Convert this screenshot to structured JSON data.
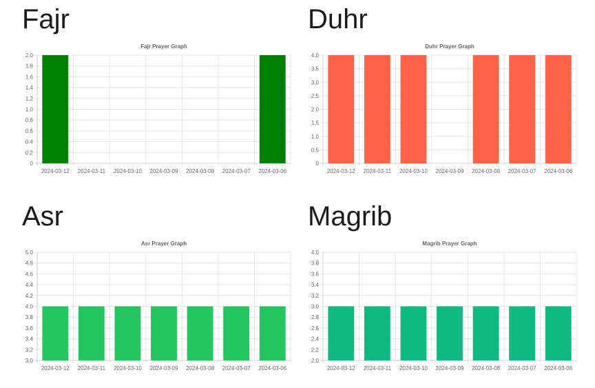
{
  "sections": [
    {
      "heading": "Fajr"
    },
    {
      "heading": "Duhr"
    },
    {
      "heading": "Asr"
    },
    {
      "heading": "Magrib"
    }
  ],
  "chart_data": [
    {
      "type": "bar",
      "title": "Fajr Prayer Graph",
      "categories": [
        "2024-03-12",
        "2024-03-11",
        "2024-03-10",
        "2024-03-09",
        "2024-03-08",
        "2024-03-07",
        "2024-03-06"
      ],
      "values": [
        2,
        0,
        0,
        0,
        0,
        0,
        2
      ],
      "yticks": [
        "0",
        "0.2",
        "0.4",
        "0.6",
        "0.8",
        "1.0",
        "1.2",
        "1.4",
        "1.6",
        "1.8",
        "2.0"
      ],
      "ylim": [
        0,
        2
      ],
      "xlabel": "",
      "ylabel": "",
      "color": "#008000",
      "grid": true
    },
    {
      "type": "bar",
      "title": "Duhr Prayer Graph",
      "categories": [
        "2024-03-12",
        "2024-03-11",
        "2024-03-10",
        "2024-03-09",
        "2024-03-08",
        "2024-03-07",
        "2024-03-06"
      ],
      "values": [
        4,
        4,
        4,
        0,
        4,
        4,
        4
      ],
      "yticks": [
        "0",
        "0.5",
        "1.0",
        "1.5",
        "2.0",
        "2.5",
        "3.0",
        "3.5",
        "4.0"
      ],
      "ylim": [
        0,
        4
      ],
      "xlabel": "",
      "ylabel": "",
      "color": "#ff6347",
      "grid": true
    },
    {
      "type": "bar",
      "title": "Asr Prayer Graph",
      "categories": [
        "2024-03-12",
        "2024-03-11",
        "2024-03-10",
        "2024-03-09",
        "2024-03-08",
        "2024-03-07",
        "2024-03-06"
      ],
      "values": [
        4,
        4,
        4,
        4,
        4,
        4,
        4
      ],
      "yticks": [
        "3.0",
        "3.2",
        "3.4",
        "3.6",
        "3.8",
        "4.0",
        "4.2",
        "4.4",
        "4.6",
        "4.8",
        "5.0"
      ],
      "ylim": [
        3,
        5
      ],
      "xlabel": "",
      "ylabel": "",
      "color": "#22c55e",
      "grid": true
    },
    {
      "type": "bar",
      "title": "Magrib Prayer Graph",
      "categories": [
        "2024-03-12",
        "2024-03-11",
        "2024-03-10",
        "2024-03-09",
        "2024-03-08",
        "2024-03-07",
        "2024-03-06"
      ],
      "values": [
        3,
        3,
        3,
        3,
        3,
        3,
        3
      ],
      "yticks": [
        "2.0",
        "2.2",
        "2.4",
        "2.6",
        "2.8",
        "3.0",
        "3.2",
        "3.4",
        "3.6",
        "3.8",
        "4.0"
      ],
      "ylim": [
        2,
        4
      ],
      "xlabel": "",
      "ylabel": "",
      "color": "#10b981",
      "grid": true
    }
  ]
}
